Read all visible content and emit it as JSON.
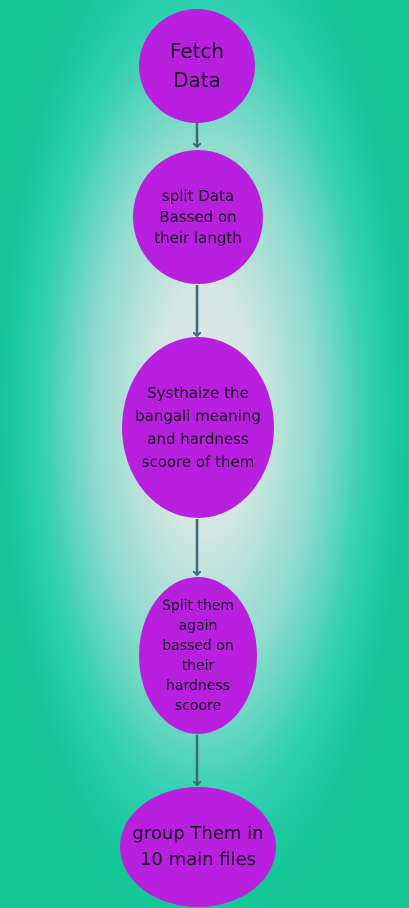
{
  "nodes": [
    {
      "label": "Fetch Data"
    },
    {
      "label": "split Data Bassed on their langth"
    },
    {
      "label": "Systhaize the bangali meaning and hardness scoore of them"
    },
    {
      "label": "Split them again bassed on their hardness scoore"
    },
    {
      "label": "group Them in 10 main files"
    }
  ],
  "colors": {
    "node_fill": "#b91fde",
    "arrow": "#3b6b78",
    "background_center": "#e6e6e6",
    "background_edge": "#12c68f"
  }
}
